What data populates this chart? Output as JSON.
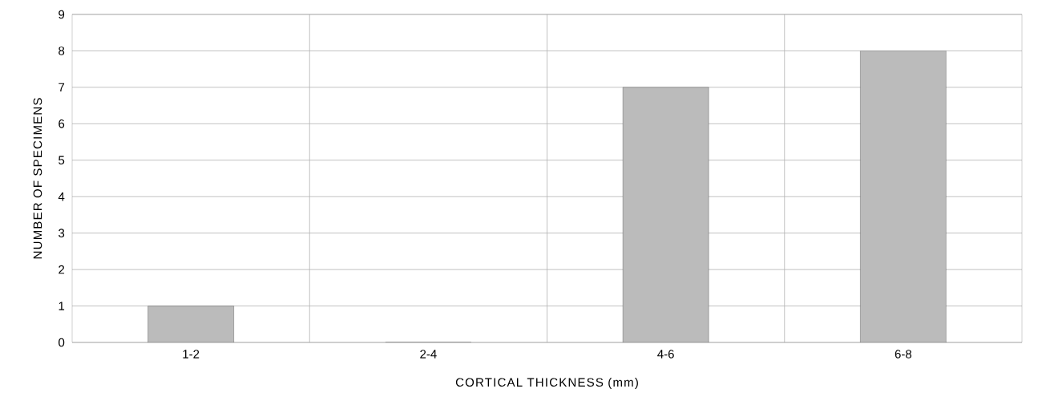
{
  "chart_data": {
    "type": "bar",
    "xlabel": "CORTICAL THICKNESS (mm)",
    "ylabel": "NUMBER OF SPECIMENS",
    "categories": [
      "1-2",
      "2-4",
      "4-6",
      "6-8"
    ],
    "values": [
      1,
      0,
      7,
      8
    ],
    "color": "#bbbbbb",
    "ylim": [
      0,
      9
    ],
    "yticks": [
      0,
      1,
      2,
      3,
      4,
      5,
      6,
      7,
      8,
      9
    ],
    "grid": true
  }
}
